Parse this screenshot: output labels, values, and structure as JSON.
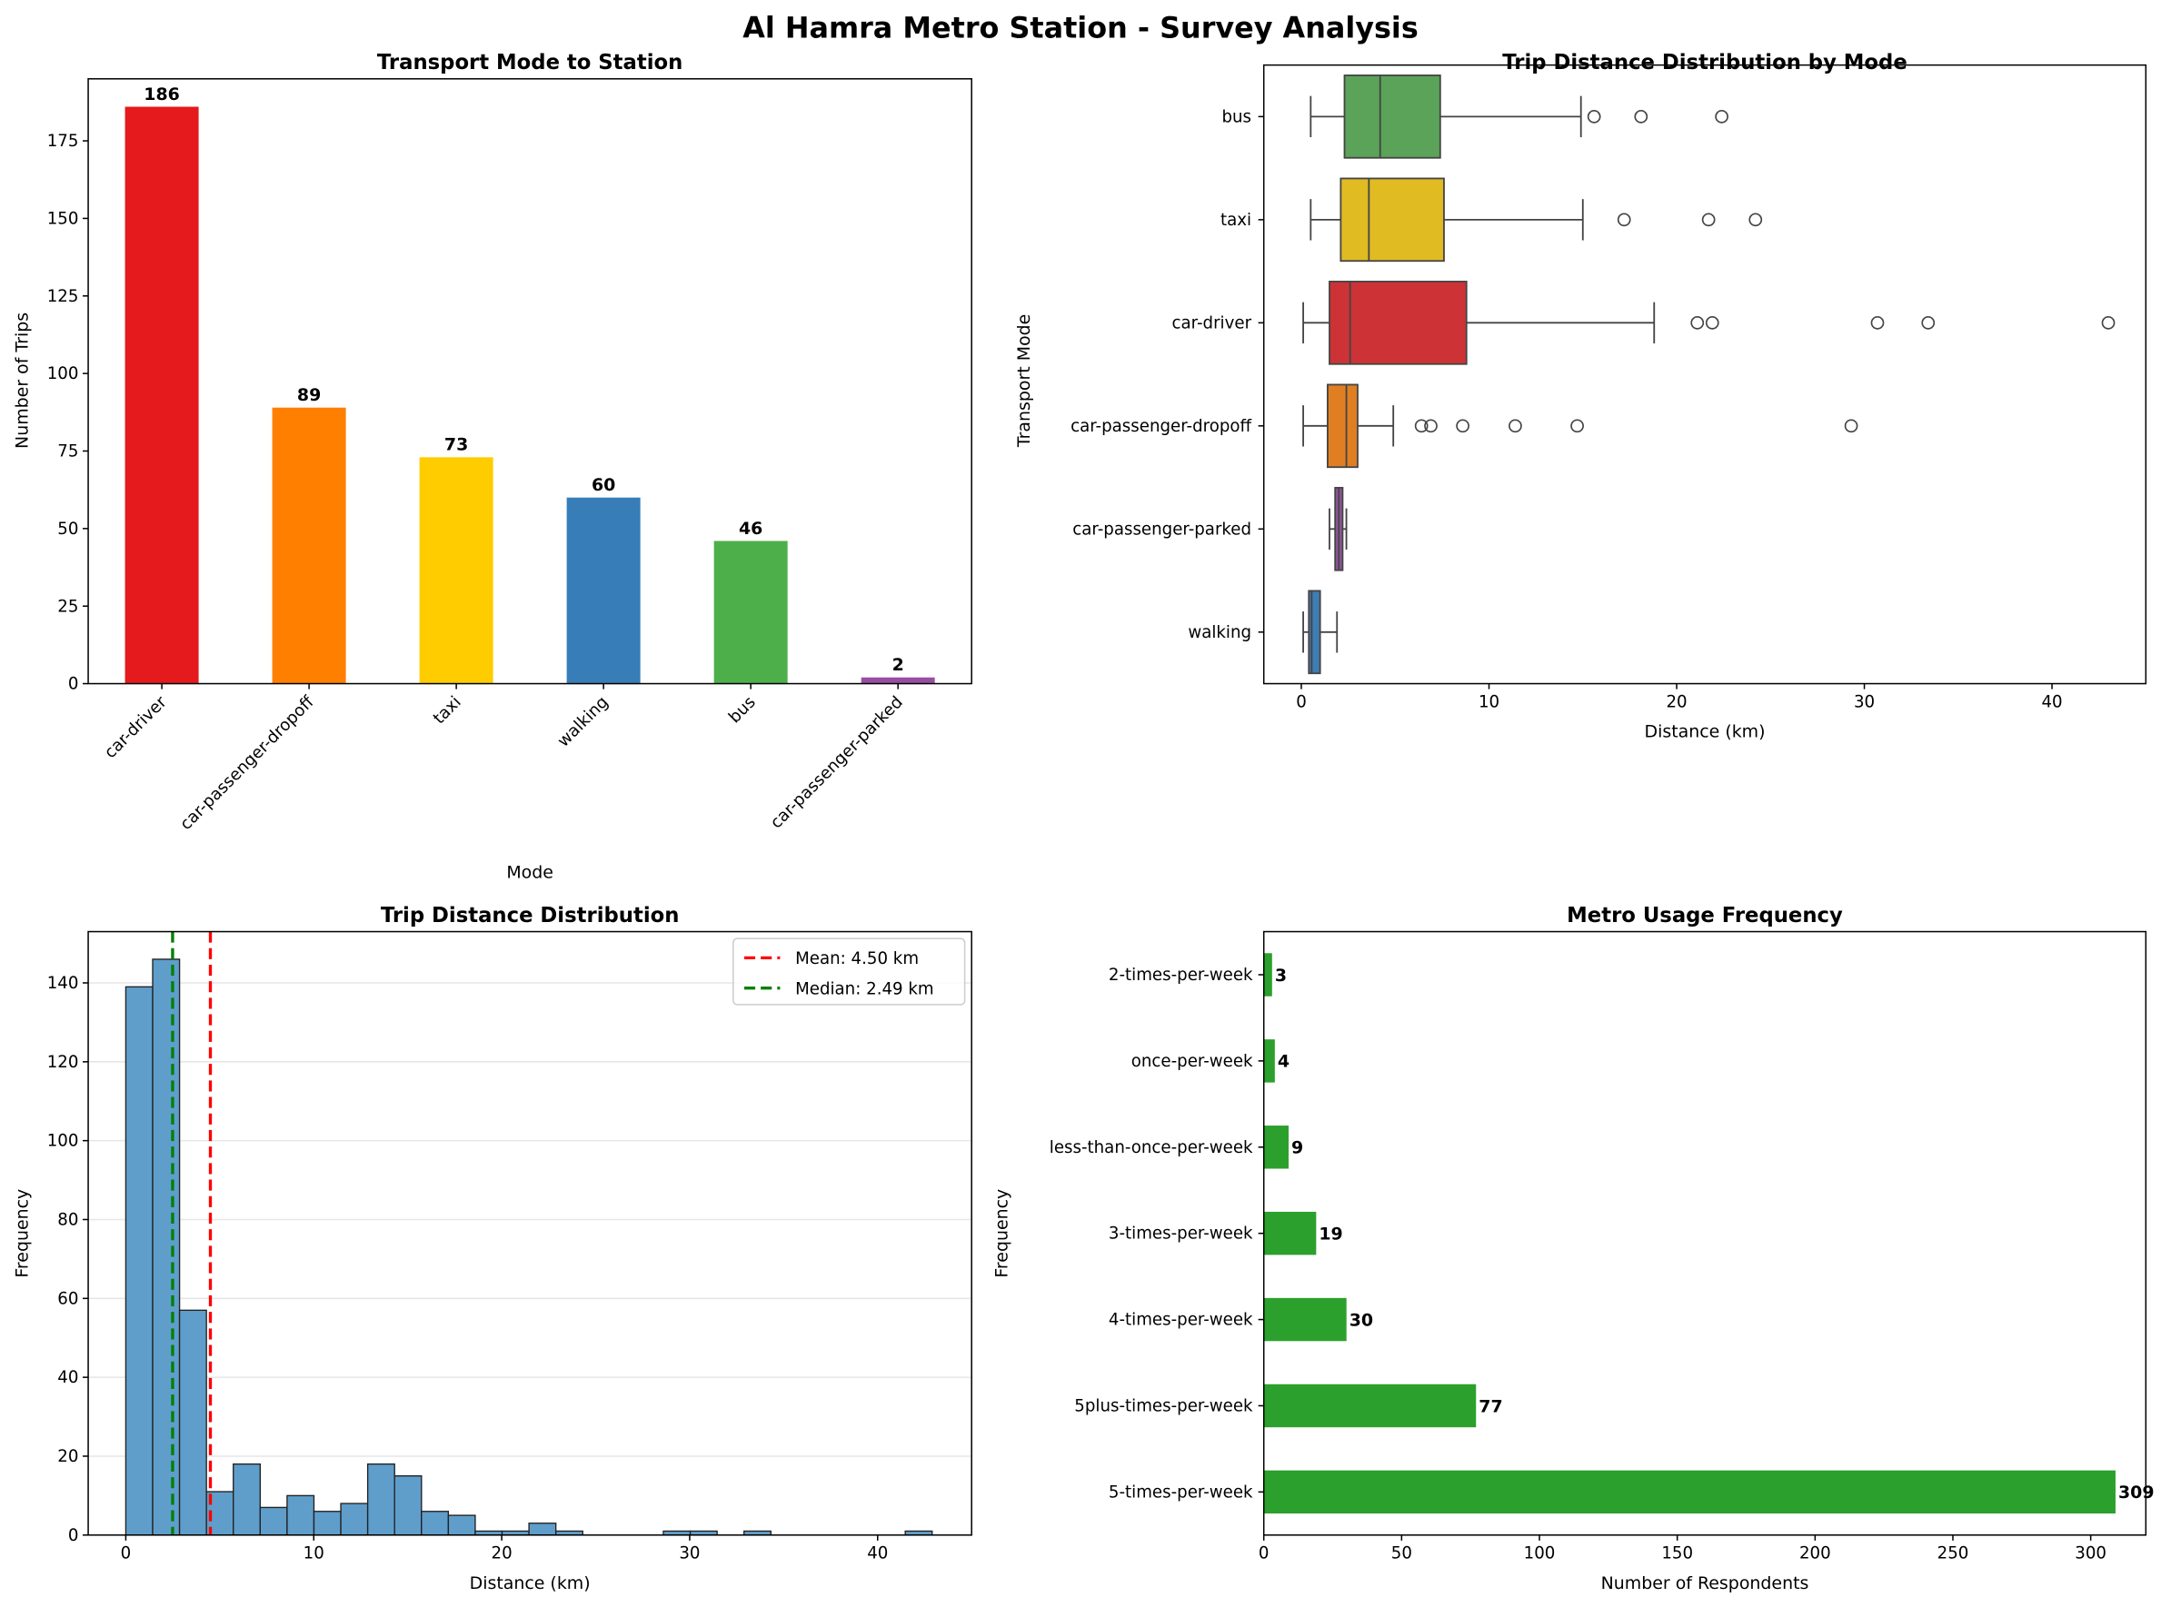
{
  "title": "Al Hamra Metro Station - Survey Analysis",
  "chart_data": [
    {
      "type": "bar",
      "title": "Transport Mode to Station",
      "xlabel": "Mode",
      "ylabel": "Number of Trips",
      "categories": [
        "car-driver",
        "car-passenger-dropoff",
        "taxi",
        "walking",
        "bus",
        "car-passenger-parked"
      ],
      "values": [
        186,
        89,
        73,
        60,
        46,
        2
      ],
      "colors": [
        "#e41a1c",
        "#ff7f00",
        "#ffcc00",
        "#377eb8",
        "#4daf4a",
        "#984ea3"
      ],
      "ylim": [
        0,
        195
      ],
      "yticks": [
        0,
        25,
        50,
        75,
        100,
        125,
        150,
        175
      ],
      "data_labels": true
    },
    {
      "type": "boxplot",
      "title": "Trip Distance Distribution by Mode",
      "xlabel": "Distance (km)",
      "ylabel": "Transport Mode",
      "xlim": [
        -2,
        45
      ],
      "xticks": [
        0,
        10,
        20,
        30,
        40
      ],
      "series": [
        {
          "name": "bus",
          "color": "#5aa358",
          "whisker_low": 0.5,
          "q1": 2.3,
          "median": 4.2,
          "q3": 7.4,
          "whisker_high": 14.9,
          "outliers": [
            15.6,
            18.1,
            22.4
          ]
        },
        {
          "name": "taxi",
          "color": "#e0bb22",
          "whisker_low": 0.5,
          "q1": 2.1,
          "median": 3.6,
          "q3": 7.6,
          "whisker_high": 15.0,
          "outliers": [
            17.2,
            21.7,
            24.2
          ]
        },
        {
          "name": "car-driver",
          "color": "#cd3336",
          "whisker_low": 0.1,
          "q1": 1.5,
          "median": 2.6,
          "q3": 8.8,
          "whisker_high": 18.8,
          "outliers": [
            21.1,
            21.9,
            30.7,
            33.4,
            43.0
          ]
        },
        {
          "name": "car-passenger-dropoff",
          "color": "#e07f22",
          "whisker_low": 0.1,
          "q1": 1.4,
          "median": 2.4,
          "q3": 3.0,
          "whisker_high": 4.9,
          "outliers": [
            6.4,
            6.9,
            8.6,
            11.4,
            14.7,
            29.3
          ]
        },
        {
          "name": "car-passenger-parked",
          "color": "#8e559a",
          "whisker_low": 1.5,
          "q1": 1.8,
          "median": 2.0,
          "q3": 2.2,
          "whisker_high": 2.4,
          "outliers": []
        },
        {
          "name": "walking",
          "color": "#3f7db3",
          "whisker_low": 0.1,
          "q1": 0.4,
          "median": 0.55,
          "q3": 1.0,
          "whisker_high": 1.9,
          "outliers": []
        }
      ]
    },
    {
      "type": "histogram",
      "title": "Trip Distance Distribution",
      "xlabel": "Distance (km)",
      "ylabel": "Frequency",
      "bin_start": 0,
      "bin_width": 1.43,
      "counts": [
        139,
        146,
        57,
        11,
        18,
        7,
        10,
        6,
        8,
        18,
        15,
        6,
        5,
        1,
        1,
        3,
        1,
        0,
        0,
        0,
        1,
        1,
        0,
        1,
        0,
        0,
        0,
        0,
        0,
        1
      ],
      "color": "#5f9ecb",
      "xlim": [
        -2,
        45
      ],
      "ylim": [
        0,
        153
      ],
      "xticks": [
        0,
        10,
        20,
        30,
        40
      ],
      "yticks": [
        0,
        20,
        40,
        60,
        80,
        100,
        120,
        140
      ],
      "grid": "y",
      "legend": "top-right",
      "lines": [
        {
          "label": "Mean: 4.50 km",
          "value": 4.5,
          "color": "#ff0000"
        },
        {
          "label": "Median: 2.49 km",
          "value": 2.49,
          "color": "#008000"
        }
      ]
    },
    {
      "type": "barh",
      "title": "Metro Usage Frequency",
      "xlabel": "Number of Respondents",
      "ylabel": "Frequency",
      "categories": [
        "5-times-per-week",
        "5plus-times-per-week",
        "4-times-per-week",
        "3-times-per-week",
        "less-than-once-per-week",
        "once-per-week",
        "2-times-per-week"
      ],
      "values": [
        309,
        77,
        30,
        19,
        9,
        4,
        3
      ],
      "color": "#2ca02c",
      "xlim": [
        0,
        320
      ],
      "xticks": [
        0,
        50,
        100,
        150,
        200,
        250,
        300
      ],
      "data_labels": true
    }
  ]
}
